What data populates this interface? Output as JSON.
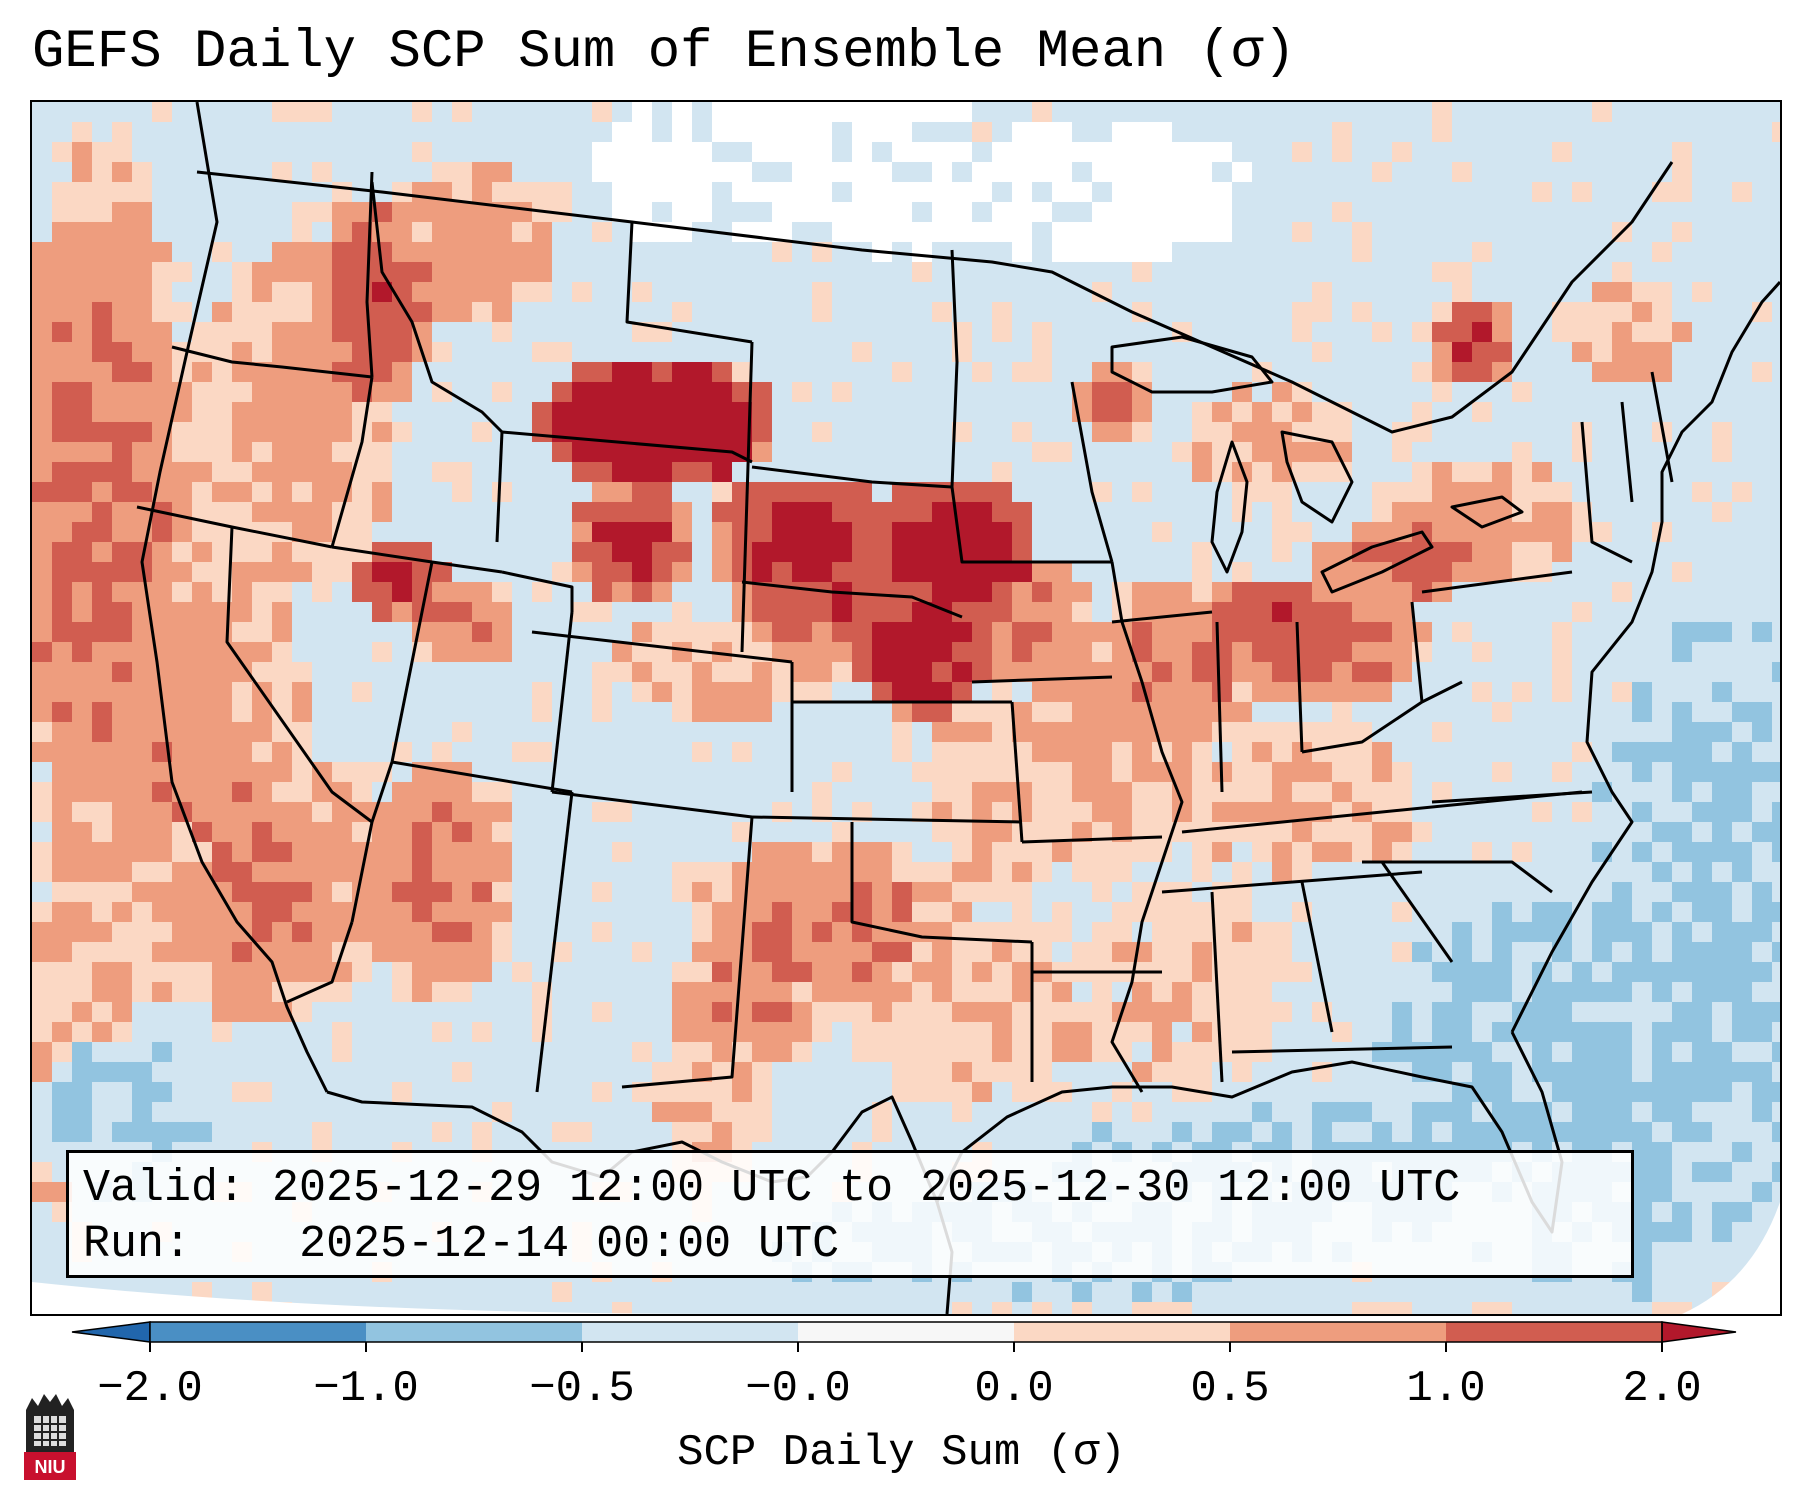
{
  "title": "GEFS Daily SCP Sum of Ensemble Mean (σ)",
  "info": {
    "valid_label": "Valid:",
    "valid_value": "2025-12-29 12:00 UTC to 2025-12-30 12:00 UTC",
    "run_label": "Run:",
    "run_value": "2025-12-14 00:00 UTC"
  },
  "colorbar": {
    "label": "SCP Daily Sum (σ)",
    "ticks": [
      "−2.0",
      "−1.0",
      "−0.5",
      "−0.0",
      "0.0",
      "0.5",
      "1.0",
      "2.0"
    ],
    "bins": [
      {
        "from": -2.0,
        "to": -1.0,
        "color": "#4a8fc4"
      },
      {
        "from": -1.0,
        "to": -0.5,
        "color": "#92c4e0"
      },
      {
        "from": -0.5,
        "to": -0.0,
        "color": "#d2e5f1"
      },
      {
        "from": -0.0,
        "to": 0.0,
        "color": "#f7f7f7"
      },
      {
        "from": 0.0,
        "to": 0.5,
        "color": "#fbd8c4"
      },
      {
        "from": 0.5,
        "to": 1.0,
        "color": "#ee9d7e"
      },
      {
        "from": 1.0,
        "to": 2.0,
        "color": "#d15d50"
      }
    ],
    "under_color": "#2166ac",
    "over_color": "#b2182b",
    "extend": "both"
  },
  "map": {
    "region": "Contiguous United States",
    "projection": "Lambert Conformal",
    "background_value_color": "#d2e5f1",
    "ocean_low_color": "#92c4e0",
    "near_zero_color": "#ffffff",
    "high_color": "#b2182b",
    "colors": {
      "w0": "#ffffff",
      "m0": "#d2e5f1",
      "m1": "#92c4e0",
      "p0": "#fbd8c4",
      "p1": "#ee9d7e",
      "p2": "#d15d50",
      "p3": "#b2182b"
    }
  },
  "logo": {
    "text": "NIU"
  }
}
